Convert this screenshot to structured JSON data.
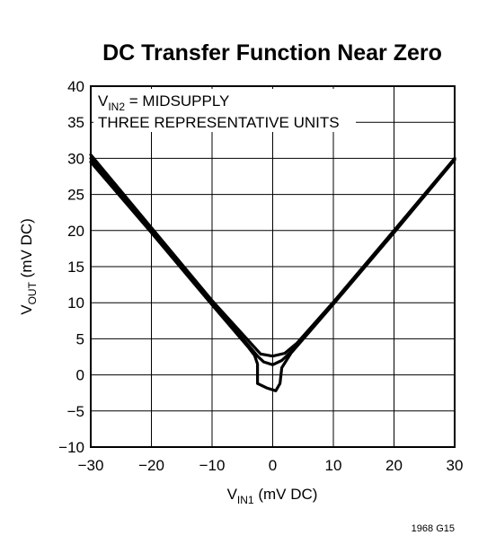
{
  "chart_data": {
    "type": "line",
    "title": "DC Transfer Function Near Zero",
    "xlabel": {
      "main": "V",
      "sub": "IN1",
      "suffix": " (mV DC)"
    },
    "ylabel": {
      "main": "V",
      "sub": "OUT",
      "suffix": " (mV DC)"
    },
    "xlim": [
      -30,
      30
    ],
    "ylim": [
      -10,
      40
    ],
    "x_ticks": [
      -30,
      -20,
      -10,
      0,
      10,
      20,
      30
    ],
    "x_tick_labels": [
      "−30",
      "−20",
      "−10",
      "0",
      "10",
      "20",
      "30"
    ],
    "y_ticks": [
      -10,
      -5,
      0,
      5,
      10,
      15,
      20,
      25,
      30,
      35,
      40
    ],
    "y_tick_labels": [
      "−10",
      "−5",
      "0",
      "5",
      "10",
      "15",
      "20",
      "25",
      "30",
      "35",
      "40"
    ],
    "grid": true,
    "annotations": [
      {
        "main": "V",
        "sub": "IN2",
        "suffix": " = MIDSUPPLY"
      },
      {
        "main": "THREE REPRESENTATIVE UNITS"
      }
    ],
    "series": [
      {
        "x": [
          -30,
          -20,
          -10,
          -2,
          0,
          2,
          4,
          10,
          20,
          30
        ],
        "y": [
          30.5,
          20.4,
          10.3,
          2.9,
          2.6,
          3.0,
          4.4,
          10.1,
          20.0,
          30.0
        ]
      },
      {
        "x": [
          -30,
          -20,
          -10,
          -4,
          -2.5,
          -1.5,
          0,
          1.5,
          3,
          10,
          20,
          30
        ],
        "y": [
          30.0,
          20.0,
          10.0,
          4.1,
          2.6,
          1.8,
          1.4,
          2.0,
          3.2,
          10.0,
          20.0,
          30.0
        ]
      },
      {
        "x": [
          -30,
          -20,
          -10,
          -4,
          -3,
          -2.5,
          -2.5,
          -1,
          0.5,
          1.2,
          1.5,
          3,
          10,
          20,
          30
        ],
        "y": [
          29.5,
          19.7,
          9.7,
          3.8,
          2.7,
          1.5,
          -1.2,
          -1.8,
          -2.2,
          -1.2,
          1.0,
          3.0,
          9.8,
          19.7,
          29.8
        ]
      }
    ]
  },
  "figure_id": "1968 G15"
}
